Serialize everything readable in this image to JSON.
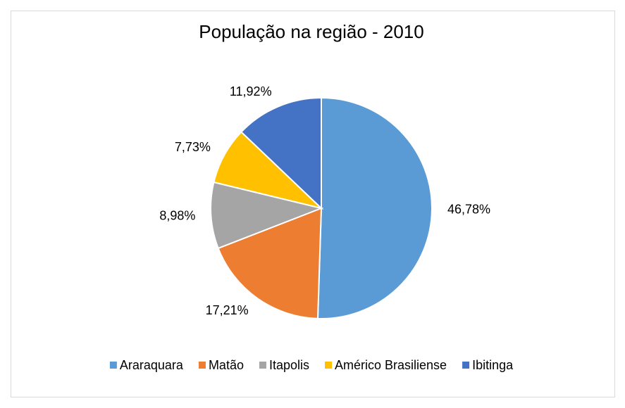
{
  "chart_data": {
    "type": "pie",
    "title": "População na região - 2010",
    "categories": [
      "Araraquara",
      "Matão",
      "Itapolis",
      "Américo Brasiliense",
      "Ibitinga"
    ],
    "values": [
      46.78,
      17.21,
      8.98,
      7.73,
      11.92
    ],
    "value_labels": [
      "46,78%",
      "17,21%",
      "8,98%",
      "7,73%",
      "11,92%"
    ],
    "colors": [
      "#5b9bd5",
      "#ed7d31",
      "#a5a5a5",
      "#ffc000",
      "#4472c4"
    ],
    "legend": "bottom"
  }
}
